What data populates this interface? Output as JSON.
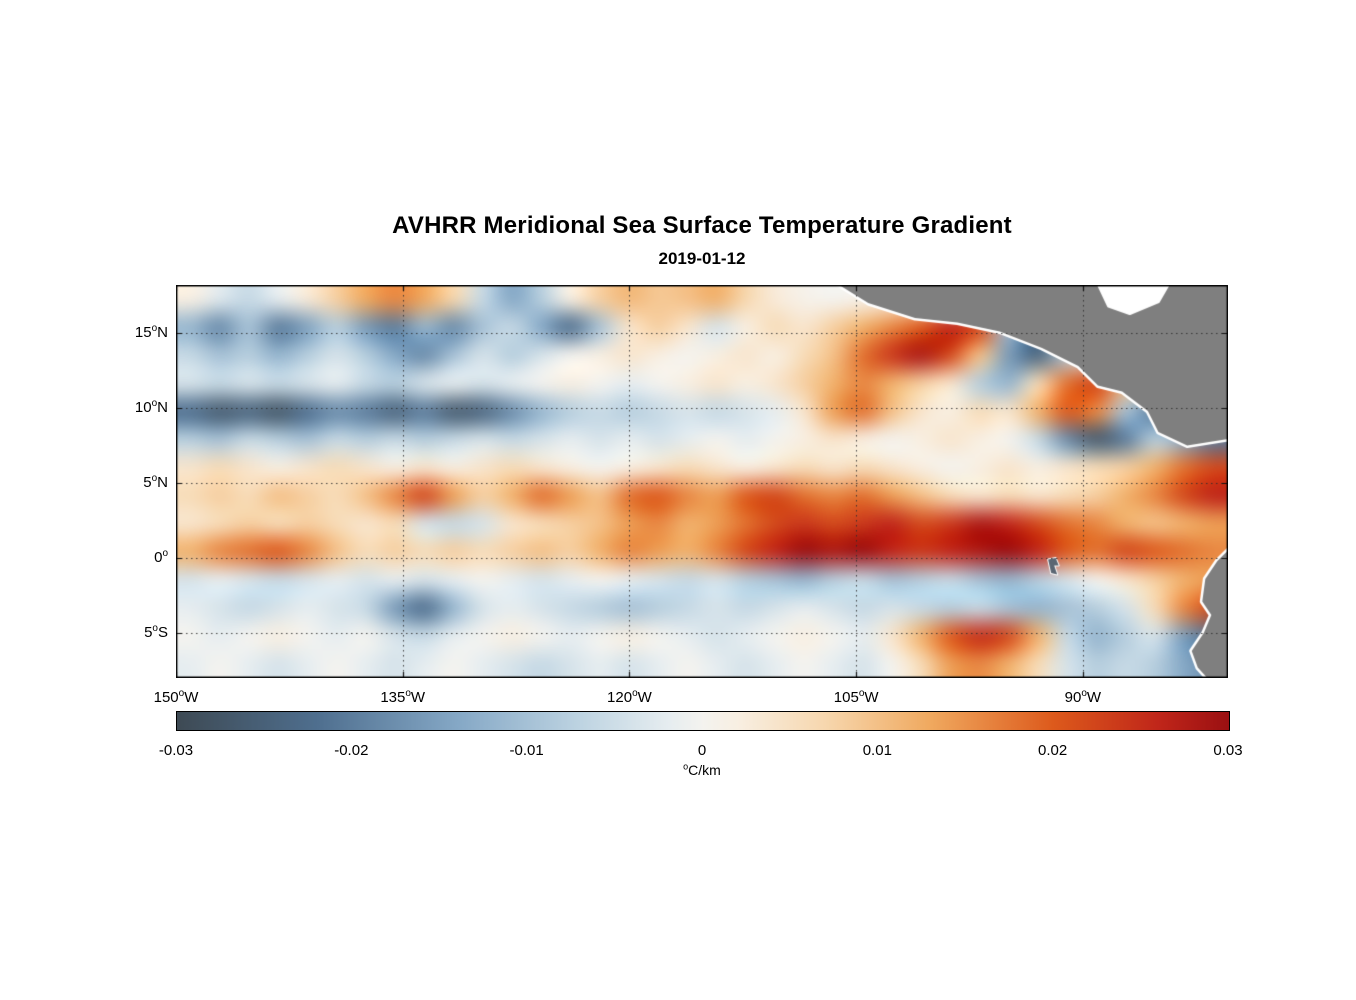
{
  "header": {
    "title": "AVHRR Meridional Sea Surface Temperature Gradient",
    "subtitle": "2019-01-12"
  },
  "chart_data": {
    "type": "heatmap",
    "title": "AVHRR Meridional Sea Surface Temperature Gradient",
    "subtitle": "2019-01-12",
    "colorbar_label": "°C/km",
    "value_range": [
      -0.03,
      0.03
    ],
    "map_extent": {
      "lon_min": -150,
      "lon_max": -80.4,
      "lat_min": -8,
      "lat_max": 18.2
    },
    "x_ticks": [
      {
        "label": "150°W",
        "lon": -150
      },
      {
        "label": "135°W",
        "lon": -135
      },
      {
        "label": "120°W",
        "lon": -120
      },
      {
        "label": "105°W",
        "lon": -105
      },
      {
        "label": "90°W",
        "lon": -90
      }
    ],
    "y_ticks": [
      {
        "label": "15°N",
        "lat": 15
      },
      {
        "label": "10°N",
        "lat": 10
      },
      {
        "label": "5°N",
        "lat": 5
      },
      {
        "label": "0°",
        "lat": 0
      },
      {
        "label": "5°S",
        "lat": -5
      }
    ],
    "gridlines": {
      "lons": [
        -135,
        -120,
        -105,
        -90
      ],
      "lats": [
        15,
        10,
        5,
        0,
        -5
      ]
    },
    "colorbar_ticks": [
      {
        "label": "-0.03",
        "v": -0.03
      },
      {
        "label": "-0.02",
        "v": -0.02
      },
      {
        "label": "-0.01",
        "v": -0.01
      },
      {
        "label": "0",
        "v": 0
      },
      {
        "label": "0.01",
        "v": 0.01
      },
      {
        "label": "0.02",
        "v": 0.02
      },
      {
        "label": "0.03",
        "v": 0.03
      }
    ],
    "colormap_stops": [
      {
        "v": -0.03,
        "c": "#3e4a54"
      },
      {
        "v": -0.022,
        "c": "#4f6f8f"
      },
      {
        "v": -0.014,
        "c": "#85a8c6"
      },
      {
        "v": -0.007,
        "c": "#bed4e2"
      },
      {
        "v": -0.002,
        "c": "#e6edf0"
      },
      {
        "v": 0.0,
        "c": "#f4f3ef"
      },
      {
        "v": 0.002,
        "c": "#f8efe2"
      },
      {
        "v": 0.007,
        "c": "#f7d7ae"
      },
      {
        "v": 0.013,
        "c": "#f0a95f"
      },
      {
        "v": 0.02,
        "c": "#dd5a1c"
      },
      {
        "v": 0.026,
        "c": "#c0261a"
      },
      {
        "v": 0.03,
        "c": "#9b1012"
      }
    ],
    "grid": {
      "lon_start": -150,
      "lon_step": 2,
      "lat_start": 18,
      "lat_step": -2,
      "units": "°C/km"
    },
    "values": [
      [
        0.002,
        -0.003,
        -0.006,
        -0.002,
        0.003,
        0.008,
        0.013,
        0.016,
        0.013,
        0.007,
        -0.006,
        -0.014,
        -0.008,
        0.002,
        0.008,
        0.011,
        0.009,
        0.01,
        0.012,
        0.007,
        0.003,
        0.001,
        0.0,
        0.001,
        0.002,
        0.001,
        0.0,
        0.001,
        0.0,
        0.001,
        0.0,
        0.001,
        0.0,
        0.001,
        0.0,
        0.001
      ],
      [
        -0.012,
        -0.018,
        -0.01,
        -0.02,
        -0.015,
        -0.008,
        -0.016,
        -0.02,
        -0.012,
        -0.018,
        -0.01,
        -0.006,
        -0.014,
        -0.022,
        -0.01,
        0.004,
        0.008,
        0.004,
        -0.004,
        0.002,
        0.006,
        0.004,
        0.008,
        0.012,
        0.016,
        0.02,
        0.026,
        0.022,
        -0.01,
        -0.022,
        0.002,
        0.001,
        0.0,
        0.001,
        0.0,
        0.001
      ],
      [
        -0.006,
        -0.01,
        -0.008,
        -0.012,
        -0.008,
        -0.004,
        -0.008,
        -0.014,
        -0.018,
        -0.01,
        -0.004,
        -0.008,
        -0.004,
        0.0,
        0.002,
        0.004,
        0.002,
        0.0,
        0.002,
        0.004,
        0.002,
        0.006,
        0.01,
        0.018,
        0.024,
        0.028,
        0.022,
        0.01,
        -0.016,
        -0.024,
        -0.008,
        0.001,
        0.0,
        0.001,
        0.0,
        0.001
      ],
      [
        -0.004,
        -0.006,
        -0.004,
        -0.006,
        -0.004,
        -0.002,
        -0.006,
        -0.008,
        -0.004,
        -0.002,
        -0.004,
        -0.002,
        0.0,
        0.002,
        0.0,
        -0.002,
        0.0,
        0.002,
        0.004,
        0.002,
        0.004,
        0.008,
        0.012,
        0.016,
        0.012,
        0.008,
        0.004,
        -0.008,
        -0.012,
        0.006,
        0.018,
        0.022,
        0.01,
        0.001,
        0.0,
        0.001
      ],
      [
        -0.022,
        -0.026,
        -0.024,
        -0.027,
        -0.022,
        -0.018,
        -0.02,
        -0.024,
        -0.02,
        -0.026,
        -0.024,
        -0.018,
        -0.012,
        -0.008,
        -0.006,
        -0.008,
        -0.006,
        -0.004,
        -0.006,
        -0.004,
        -0.002,
        0.004,
        0.014,
        0.018,
        0.01,
        0.004,
        0.002,
        0.006,
        0.004,
        0.012,
        0.02,
        0.016,
        -0.01,
        -0.02,
        -0.008,
        0.001
      ],
      [
        -0.008,
        -0.01,
        -0.006,
        -0.008,
        -0.01,
        -0.006,
        -0.008,
        -0.006,
        -0.008,
        -0.006,
        -0.004,
        -0.006,
        -0.004,
        -0.002,
        -0.004,
        -0.002,
        -0.004,
        -0.002,
        0.0,
        -0.002,
        0.0,
        0.002,
        0.004,
        0.002,
        0.0,
        0.002,
        0.004,
        0.002,
        0.0,
        -0.006,
        -0.018,
        -0.026,
        -0.02,
        -0.008,
        -0.014,
        -0.02
      ],
      [
        0.004,
        0.006,
        0.004,
        0.002,
        0.004,
        0.006,
        0.004,
        0.002,
        0.004,
        0.002,
        0.004,
        0.006,
        0.004,
        0.002,
        0.0,
        0.002,
        0.004,
        0.006,
        0.004,
        0.002,
        0.004,
        0.006,
        0.004,
        0.006,
        0.004,
        0.002,
        0.0,
        0.002,
        0.004,
        0.002,
        0.004,
        0.006,
        0.008,
        0.012,
        0.018,
        0.022
      ],
      [
        0.006,
        0.008,
        0.006,
        0.01,
        0.008,
        0.006,
        0.01,
        0.016,
        0.022,
        0.014,
        0.008,
        0.012,
        0.018,
        0.014,
        0.01,
        0.018,
        0.02,
        0.016,
        0.014,
        0.02,
        0.022,
        0.018,
        0.016,
        0.018,
        0.014,
        0.01,
        0.006,
        0.004,
        0.006,
        0.004,
        0.006,
        0.008,
        0.012,
        0.016,
        0.022,
        0.026
      ],
      [
        0.004,
        0.006,
        0.008,
        0.006,
        0.008,
        0.006,
        0.004,
        0.006,
        -0.004,
        -0.006,
        -0.004,
        0.004,
        0.006,
        0.008,
        0.01,
        0.014,
        0.016,
        0.012,
        0.014,
        0.018,
        0.022,
        0.024,
        0.022,
        0.024,
        0.026,
        0.022,
        0.024,
        0.028,
        0.026,
        0.022,
        0.018,
        0.016,
        0.012,
        0.01,
        0.012,
        0.014
      ],
      [
        0.012,
        0.016,
        0.018,
        0.02,
        0.016,
        0.01,
        0.006,
        0.008,
        0.006,
        0.008,
        0.006,
        0.008,
        0.01,
        0.008,
        0.012,
        0.016,
        0.014,
        0.012,
        0.016,
        0.022,
        0.026,
        0.03,
        0.028,
        0.03,
        0.026,
        0.024,
        0.026,
        0.028,
        0.03,
        0.026,
        0.02,
        0.018,
        0.022,
        0.02,
        0.018,
        0.016
      ],
      [
        -0.004,
        -0.002,
        -0.004,
        -0.006,
        -0.004,
        -0.002,
        -0.004,
        -0.002,
        -0.004,
        -0.002,
        0.0,
        -0.002,
        -0.004,
        -0.002,
        0.0,
        -0.002,
        -0.004,
        -0.006,
        -0.004,
        -0.008,
        -0.01,
        -0.012,
        -0.008,
        -0.006,
        -0.01,
        -0.008,
        -0.006,
        -0.01,
        -0.012,
        -0.008,
        -0.004,
        0.0,
        0.004,
        0.008,
        0.012,
        0.014
      ],
      [
        -0.002,
        -0.004,
        -0.006,
        -0.004,
        -0.002,
        -0.004,
        -0.006,
        -0.016,
        -0.022,
        -0.012,
        -0.004,
        -0.002,
        -0.004,
        -0.006,
        -0.008,
        -0.01,
        -0.008,
        -0.006,
        -0.004,
        -0.006,
        -0.004,
        -0.002,
        -0.004,
        -0.006,
        -0.004,
        -0.006,
        -0.008,
        -0.006,
        -0.01,
        -0.012,
        -0.01,
        -0.008,
        -0.004,
        0.006,
        0.016,
        0.022
      ],
      [
        0.0,
        -0.002,
        0.0,
        0.002,
        0.0,
        -0.002,
        0.0,
        -0.004,
        -0.006,
        -0.002,
        0.0,
        0.002,
        0.0,
        -0.002,
        0.0,
        0.002,
        0.0,
        -0.002,
        -0.004,
        -0.002,
        0.0,
        0.002,
        0.0,
        -0.002,
        0.004,
        0.012,
        0.02,
        0.025,
        0.022,
        0.012,
        -0.006,
        -0.012,
        -0.008,
        -0.004,
        -0.016,
        -0.022
      ],
      [
        -0.002,
        0.0,
        -0.002,
        -0.004,
        -0.002,
        0.0,
        -0.002,
        -0.004,
        -0.002,
        0.0,
        -0.002,
        -0.004,
        -0.006,
        -0.004,
        -0.002,
        -0.004,
        -0.002,
        0.0,
        -0.002,
        -0.004,
        -0.002,
        0.0,
        -0.002,
        -0.004,
        0.0,
        0.006,
        0.014,
        0.016,
        0.012,
        0.006,
        -0.004,
        -0.008,
        -0.006,
        -0.008,
        -0.014,
        -0.018
      ]
    ],
    "land": {
      "color": "#7f7f7f",
      "coast_color": "#ffffff",
      "polygons": [
        {
          "name": "central-america",
          "points": [
            [
              -106.6,
              18.5
            ],
            [
              -104.2,
              17.0
            ],
            [
              -101.1,
              16.0
            ],
            [
              -98.3,
              15.7
            ],
            [
              -95.5,
              15.1
            ],
            [
              -92.7,
              14.0
            ],
            [
              -90.3,
              12.8
            ],
            [
              -89.0,
              11.5
            ],
            [
              -87.4,
              11.1
            ],
            [
              -85.7,
              9.8
            ],
            [
              -85.0,
              8.4
            ],
            [
              -83.1,
              7.5
            ],
            [
              -80.0,
              8.0
            ],
            [
              -80.0,
              18.5
            ]
          ]
        },
        {
          "name": "south-america",
          "points": [
            [
              -80.0,
              0.9
            ],
            [
              -81.1,
              -0.2
            ],
            [
              -81.9,
              -1.4
            ],
            [
              -82.1,
              -2.9
            ],
            [
              -81.5,
              -3.8
            ],
            [
              -82.0,
              -5.0
            ],
            [
              -82.8,
              -6.2
            ],
            [
              -82.4,
              -7.3
            ],
            [
              -81.5,
              -8.3
            ],
            [
              -80.0,
              -8.3
            ]
          ]
        },
        {
          "name": "galapagos-islands",
          "fill": "#5b6673",
          "stroke_width": 2,
          "points": [
            [
              -92.3,
              -0.1
            ],
            [
              -91.8,
              0.0
            ],
            [
              -91.6,
              -0.5
            ],
            [
              -91.9,
              -0.5
            ],
            [
              -91.7,
              -1.1
            ],
            [
              -92.1,
              -1.0
            ]
          ]
        }
      ],
      "gaps": [
        {
          "name": "caribbean-gap",
          "points": [
            [
              -89.1,
              18.5
            ],
            [
              -88.3,
              16.8
            ],
            [
              -86.9,
              16.3
            ],
            [
              -85.0,
              17.1
            ],
            [
              -84.2,
              18.5
            ]
          ]
        }
      ]
    }
  }
}
